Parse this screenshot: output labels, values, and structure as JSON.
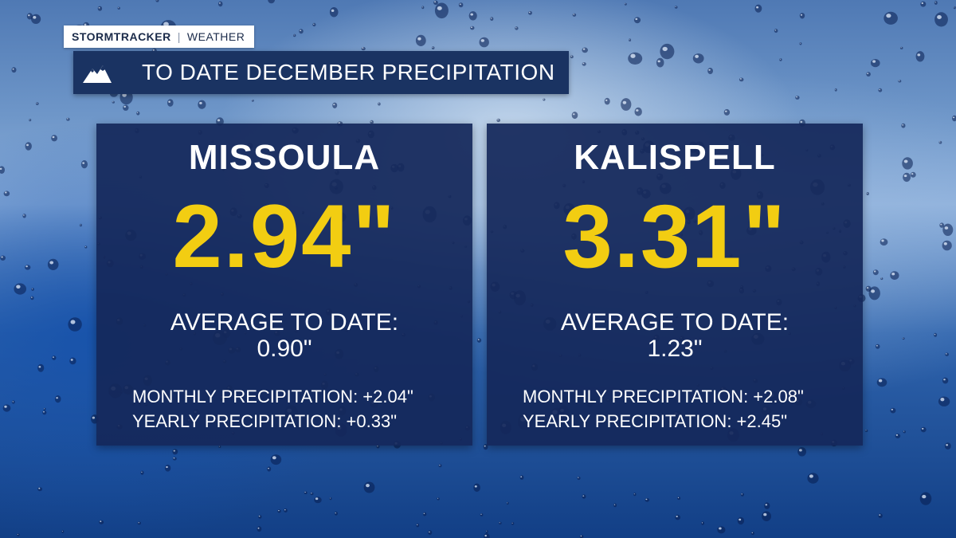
{
  "brand": {
    "name": "STORMTRACKER",
    "sub": "WEATHER"
  },
  "title": {
    "icon": "mountain-icon",
    "text": "TO DATE DECEMBER PRECIPITATION"
  },
  "colors": {
    "panel": "#14285a",
    "title_bar": "#1a3362",
    "total_accent": "#f2cd12",
    "text": "#ffffff"
  },
  "cities": [
    {
      "name": "MISSOULA",
      "total": "2.94\"",
      "average_label": "AVERAGE TO DATE:",
      "average_value": "0.90\"",
      "monthly": "MONTHLY PRECIPITATION: +2.04\"",
      "yearly": "YEARLY PRECIPITATION: +0.33\""
    },
    {
      "name": "KALISPELL",
      "total": "3.31\"",
      "average_label": "AVERAGE TO DATE:",
      "average_value": "1.23\"",
      "monthly": "MONTHLY PRECIPITATION: +2.08\"",
      "yearly": "YEARLY PRECIPITATION: +2.45\""
    }
  ]
}
